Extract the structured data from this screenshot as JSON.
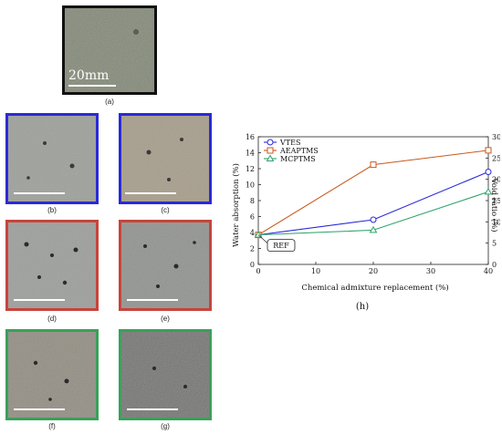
{
  "colors": {
    "blue": "#2a2ad6",
    "red": "#c8443a",
    "green": "#3aa05a",
    "dark": "#111111",
    "orange_line": "#c85a1e",
    "green_line": "#2ea36a"
  },
  "figure": {
    "scale_text": "20mm",
    "panels": [
      {
        "label": "(a)",
        "border": "dark"
      },
      {
        "label": "(b)",
        "border": "blue"
      },
      {
        "label": "(c)",
        "border": "blue"
      },
      {
        "label": "(d)",
        "border": "red"
      },
      {
        "label": "(e)",
        "border": "red"
      },
      {
        "label": "(f)",
        "border": "green"
      },
      {
        "label": "(g)",
        "border": "green"
      }
    ]
  },
  "chart_data": {
    "type": "line",
    "panel_label": "(h)",
    "xlabel": "Chemical admixture replacement (%)",
    "ylabel": "Water absorption (%)",
    "y2label": "Void ratio (%)",
    "xlim": [
      0,
      40
    ],
    "ylim": [
      0,
      16
    ],
    "y2lim": [
      0,
      30
    ],
    "xticks": [
      "0",
      "10",
      "20",
      "30",
      "40"
    ],
    "yticks": [
      "0",
      "2",
      "4",
      "6",
      "8",
      "10",
      "12",
      "14",
      "16"
    ],
    "y2ticks": [
      "0",
      "5",
      "10",
      "15",
      "20",
      "25",
      "30"
    ],
    "legend_position": "top-left",
    "annotation": "REF",
    "ref_point": {
      "x": 0,
      "y": 3.7
    },
    "series": [
      {
        "name": "VTES",
        "marker": "circle",
        "color": "#2a2ad6",
        "x": [
          0,
          20,
          40
        ],
        "y": [
          3.7,
          5.6,
          11.6
        ]
      },
      {
        "name": "AEAPTMS",
        "marker": "square",
        "color": "#c85a1e",
        "x": [
          0,
          20,
          40
        ],
        "y": [
          3.7,
          12.5,
          14.3
        ]
      },
      {
        "name": "MCPTMS",
        "marker": "triangle",
        "color": "#2ea36a",
        "x": [
          0,
          20,
          40
        ],
        "y": [
          3.7,
          4.3,
          9.1
        ]
      }
    ]
  }
}
